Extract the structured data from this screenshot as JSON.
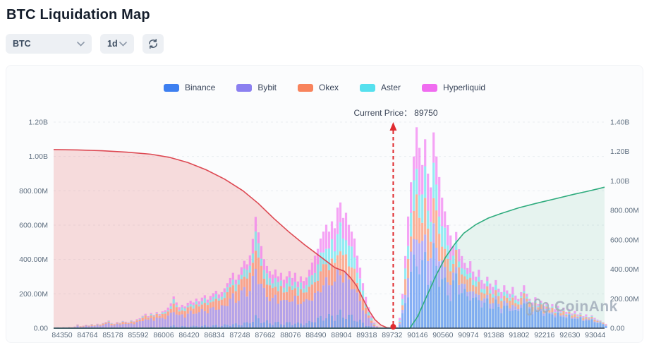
{
  "header": {
    "title": "BTC Liquidation Map"
  },
  "toolbar": {
    "symbol_select": {
      "value": "BTC"
    },
    "interval_select": {
      "value": "1d"
    },
    "refresh_icon": "circular-arrows"
  },
  "watermark": {
    "text": "CoinAnk"
  },
  "chart_data": {
    "type": "bar",
    "title": "BTC Liquidation Map",
    "legend_position": "top-center",
    "grid": "horizontal-dashed",
    "current_price": {
      "label": "Current Price：",
      "value": "89750",
      "price": 89750,
      "color": "#df2b2f"
    },
    "x_axis": {
      "min": 84212,
      "max": 93196,
      "tick_start": 84350,
      "tick_step": 414,
      "tick_labels": [
        "84350",
        "84764",
        "85178",
        "85592",
        "86006",
        "86420",
        "86834",
        "87248",
        "87662",
        "88076",
        "88490",
        "88904",
        "89318",
        "89732",
        "90146",
        "90560",
        "90974",
        "91388",
        "91802",
        "92216",
        "92630",
        "93044"
      ]
    },
    "y_axis_left": {
      "max_millions": 1200,
      "tick_values": [
        1200,
        1000,
        800,
        600,
        400,
        200,
        0
      ],
      "tick_labels": [
        "1.20B",
        "1.00B",
        "800.00M",
        "600.00M",
        "400.00M",
        "200.00M",
        "0.00"
      ]
    },
    "y_axis_right": {
      "max_millions": 1400,
      "tick_values": [
        1400,
        1200,
        1000,
        800,
        600,
        400,
        200,
        0
      ],
      "tick_labels": [
        "1.40B",
        "1.20B",
        "1.00B",
        "800.00M",
        "600.00M",
        "400.00M",
        "200.00M",
        "0.00"
      ]
    },
    "exchanges": [
      {
        "name": "Binance",
        "color": "#3d7ff0"
      },
      {
        "name": "Bybit",
        "color": "#8b80f0"
      },
      {
        "name": "Okex",
        "color": "#f8835c"
      },
      {
        "name": "Aster",
        "color": "#55e0ee"
      },
      {
        "name": "Hyperliquid",
        "color": "#f06cf0"
      }
    ],
    "bars": {
      "price_start": 84235,
      "price_step": 46.07,
      "units": "millions USD",
      "totals_millions": [
        3,
        5,
        4,
        6,
        5,
        8,
        6,
        10,
        22,
        12,
        15,
        20,
        16,
        24,
        18,
        26,
        22,
        30,
        36,
        45,
        30,
        26,
        36,
        32,
        42,
        38,
        34,
        46,
        40,
        52,
        58,
        72,
        84,
        70,
        88,
        78,
        94,
        82,
        98,
        105,
        120,
        145,
        185,
        150,
        122,
        136,
        126,
        148,
        160,
        150,
        172,
        156,
        178,
        192,
        166,
        188,
        204,
        218,
        196,
        210,
        232,
        262,
        292,
        322,
        282,
        312,
        355,
        392,
        372,
        424,
        520,
        648,
        558,
        478,
        402,
        362,
        332,
        312,
        342,
        302,
        322,
        282,
        302,
        332,
        292,
        322,
        272,
        302,
        275,
        295,
        340,
        382,
        422,
        462,
        522,
        562,
        602,
        562,
        622,
        582,
        702,
        732,
        642,
        672,
        602,
        562,
        522,
        422,
        352,
        262,
        182,
        122,
        72,
        32,
        12,
        5,
        2,
        0,
        0,
        0,
        0,
        8,
        60,
        200,
        420,
        650,
        850,
        1000,
        1170,
        1050,
        950,
        1100,
        900,
        820,
        1140,
        1000,
        880,
        760,
        680,
        600,
        540,
        480,
        560,
        460,
        420,
        380,
        350,
        390,
        330,
        300,
        340,
        280,
        260,
        300,
        260,
        240,
        280,
        230,
        210,
        250,
        220,
        200,
        240,
        190,
        170,
        210,
        250,
        200,
        170,
        150,
        180,
        140,
        160,
        130,
        150,
        120,
        140,
        110,
        130,
        100,
        120,
        95,
        110,
        85,
        100,
        80,
        90,
        70,
        80,
        65,
        75,
        60,
        50,
        45,
        35,
        25
      ]
    },
    "composition_segments": [
      {
        "max_price": 86000,
        "fractions": [
          0.05,
          0.6,
          0.22,
          0.06,
          0.07
        ]
      },
      {
        "max_price": 87400,
        "fractions": [
          0.07,
          0.5,
          0.22,
          0.1,
          0.11
        ]
      },
      {
        "max_price": 88400,
        "fractions": [
          0.09,
          0.44,
          0.2,
          0.13,
          0.14
        ]
      },
      {
        "max_price": 89760,
        "fractions": [
          0.11,
          0.34,
          0.18,
          0.17,
          0.2
        ]
      },
      {
        "max_price": 90700,
        "fractions": [
          0.36,
          0.13,
          0.16,
          0.15,
          0.2
        ]
      },
      {
        "max_price": 91800,
        "fractions": [
          0.52,
          0.1,
          0.16,
          0.09,
          0.13
        ]
      },
      {
        "max_price": 93300,
        "fractions": [
          0.64,
          0.08,
          0.13,
          0.05,
          0.1
        ]
      }
    ],
    "cumulative_short_line": {
      "name": "cumulative short liquidation",
      "axis": "left",
      "color": "#dd4852",
      "fill": "rgba(232,88,88,0.20)",
      "points": [
        [
          84212,
          1040
        ],
        [
          84600,
          1038
        ],
        [
          85000,
          1033
        ],
        [
          85400,
          1025
        ],
        [
          85800,
          1013
        ],
        [
          86100,
          995
        ],
        [
          86400,
          965
        ],
        [
          86700,
          922
        ],
        [
          87000,
          868
        ],
        [
          87300,
          800
        ],
        [
          87550,
          726
        ],
        [
          87800,
          640
        ],
        [
          88050,
          560
        ],
        [
          88300,
          487
        ],
        [
          88550,
          420
        ],
        [
          88800,
          352
        ],
        [
          88950,
          332
        ],
        [
          89050,
          295
        ],
        [
          89150,
          248
        ],
        [
          89250,
          175
        ],
        [
          89350,
          105
        ],
        [
          89450,
          50
        ],
        [
          89550,
          18
        ],
        [
          89650,
          3
        ],
        [
          89750,
          0
        ]
      ]
    },
    "cumulative_long_line": {
      "name": "cumulative long liquidation",
      "axis": "right",
      "color": "#2fac7e",
      "fill": "rgba(52,168,121,0.10)",
      "points": [
        [
          84212,
          0
        ],
        [
          90020,
          0
        ],
        [
          90150,
          80
        ],
        [
          90300,
          220
        ],
        [
          90450,
          360
        ],
        [
          90600,
          480
        ],
        [
          90750,
          570
        ],
        [
          90900,
          645
        ],
        [
          91100,
          705
        ],
        [
          91300,
          748
        ],
        [
          91500,
          778
        ],
        [
          91800,
          818
        ],
        [
          92100,
          850
        ],
        [
          92400,
          880
        ],
        [
          92700,
          910
        ],
        [
          92900,
          928
        ],
        [
          93100,
          948
        ],
        [
          93196,
          958
        ]
      ]
    },
    "colors": {
      "grid": "#e9edf1",
      "axis_line": "#2f3e50",
      "tick_text": "#5f6f80",
      "watermark": "#a2adbb"
    }
  }
}
